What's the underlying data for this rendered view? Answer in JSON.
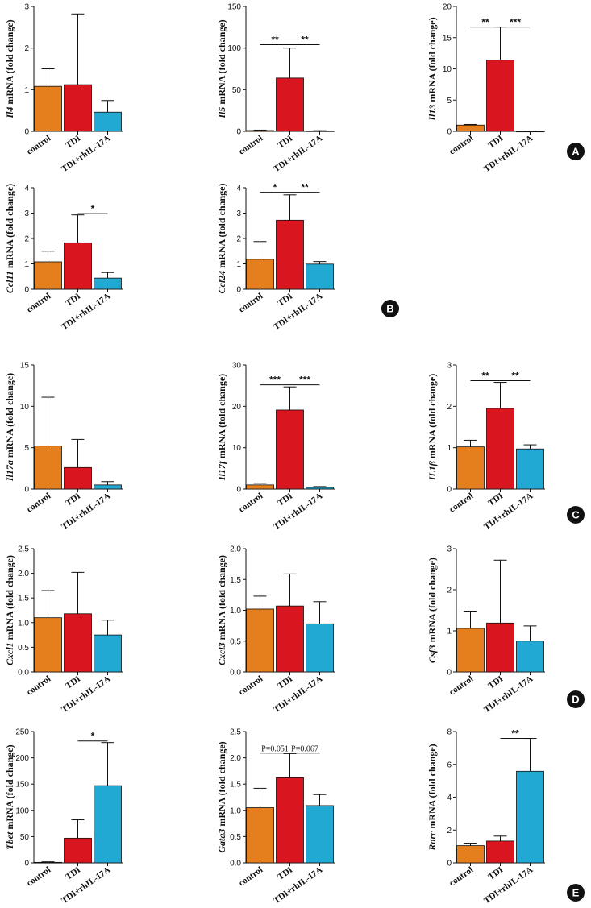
{
  "colors": {
    "control": "#e57e1c",
    "TDI": "#d9161f",
    "TDI+rhIL-17A": "#22a9d3",
    "axis": "#111111"
  },
  "chart_data": [
    {
      "type": "bar",
      "panel": "A",
      "gene": "Il4",
      "ylabel_suffix": " mRNA (fold change)",
      "categories": [
        "control",
        "TDI",
        "TDI+rhIL-17A"
      ],
      "values": [
        1.08,
        1.12,
        0.46
      ],
      "errors": [
        0.42,
        1.7,
        0.28
      ],
      "ylim": [
        0,
        3
      ],
      "yticks": [
        "0",
        "1",
        "2",
        "3"
      ],
      "significance": []
    },
    {
      "type": "bar",
      "panel": "A",
      "gene": "Il5",
      "ylabel_suffix": " mRNA (fold change)",
      "categories": [
        "control",
        "TDI",
        "TDI+rhIL-17A"
      ],
      "values": [
        1,
        64,
        0.5
      ],
      "errors": [
        0.5,
        36,
        0.3
      ],
      "ylim": [
        0,
        150
      ],
      "yticks": [
        "0",
        "50",
        "100",
        "150"
      ],
      "significance": [
        {
          "from": 0,
          "to": 1,
          "label": "**",
          "level": 104
        },
        {
          "from": 1,
          "to": 2,
          "label": "**",
          "level": 104
        }
      ]
    },
    {
      "type": "bar",
      "panel": "A",
      "gene": "Il13",
      "ylabel_suffix": " mRNA (fold change)",
      "categories": [
        "control",
        "TDI",
        "TDI+rhIL-17A"
      ],
      "values": [
        1.0,
        11.4,
        0.02
      ],
      "errors": [
        0.1,
        5.3,
        0.01
      ],
      "ylim": [
        0,
        20
      ],
      "yticks": [
        "0",
        "5",
        "10",
        "15",
        "20"
      ],
      "significance": [
        {
          "from": 0,
          "to": 1,
          "label": "**",
          "level": 16.7
        },
        {
          "from": 1,
          "to": 2,
          "label": "***",
          "level": 16.7
        }
      ]
    },
    {
      "type": "bar",
      "panel": "B",
      "gene": "Ccl11",
      "ylabel_suffix": " mRNA (fold change)",
      "categories": [
        "control",
        "TDI",
        "TDI+rhIL-17A"
      ],
      "values": [
        1.08,
        1.83,
        0.44
      ],
      "errors": [
        0.42,
        1.1,
        0.22
      ],
      "ylim": [
        0,
        4
      ],
      "yticks": [
        "0",
        "1",
        "2",
        "3",
        "4"
      ],
      "significance": [
        {
          "from": 1,
          "to": 2,
          "label": "*",
          "level": 2.98
        }
      ]
    },
    {
      "type": "bar",
      "panel": "B",
      "gene": "Ccl24",
      "ylabel_suffix": " mRNA (fold change)",
      "categories": [
        "control",
        "TDI",
        "TDI+rhIL-17A"
      ],
      "values": [
        1.18,
        2.72,
        0.99
      ],
      "errors": [
        0.7,
        1.0,
        0.1
      ],
      "ylim": [
        0,
        4
      ],
      "yticks": [
        "0",
        "1",
        "2",
        "3",
        "4"
      ],
      "significance": [
        {
          "from": 0,
          "to": 1,
          "label": "*",
          "level": 3.82
        },
        {
          "from": 1,
          "to": 2,
          "label": "**",
          "level": 3.82
        }
      ]
    },
    {
      "type": "bar",
      "panel": "C",
      "gene": "Il17a",
      "ylabel_suffix": " mRNA (fold change)",
      "categories": [
        "control",
        "TDI",
        "TDI+rhIL-17A"
      ],
      "values": [
        5.2,
        2.6,
        0.5
      ],
      "errors": [
        5.9,
        3.4,
        0.4
      ],
      "ylim": [
        0,
        15
      ],
      "yticks": [
        "0",
        "5",
        "10",
        "15"
      ],
      "significance": []
    },
    {
      "type": "bar",
      "panel": "C",
      "gene": "Il17f",
      "ylabel_suffix": " mRNA (fold change)",
      "categories": [
        "control",
        "TDI",
        "TDI+rhIL-17A"
      ],
      "values": [
        1.0,
        19.1,
        0.4
      ],
      "errors": [
        0.4,
        5.6,
        0.2
      ],
      "ylim": [
        0,
        30
      ],
      "yticks": [
        "0",
        "10",
        "20",
        "30"
      ],
      "significance": [
        {
          "from": 0,
          "to": 1,
          "label": "***",
          "level": 25.2
        },
        {
          "from": 1,
          "to": 2,
          "label": "***",
          "level": 25.2
        }
      ]
    },
    {
      "type": "bar",
      "panel": "C",
      "gene": "IL1β",
      "ylabel_suffix": " mRNA (fold change)",
      "categories": [
        "control",
        "TDI",
        "TDI+rhIL-17A"
      ],
      "values": [
        1.02,
        1.95,
        0.97
      ],
      "errors": [
        0.16,
        0.63,
        0.1
      ],
      "ylim": [
        0,
        3
      ],
      "yticks": [
        "0",
        "1",
        "2",
        "3"
      ],
      "significance": [
        {
          "from": 0,
          "to": 1,
          "label": "**",
          "level": 2.62
        },
        {
          "from": 1,
          "to": 2,
          "label": "**",
          "level": 2.62
        }
      ]
    },
    {
      "type": "bar",
      "panel": "D",
      "gene": "Cxcl1",
      "ylabel_suffix": " mRNA (fold change)",
      "categories": [
        "control",
        "TDI",
        "TDI+rhIL-17A"
      ],
      "values": [
        1.1,
        1.18,
        0.75
      ],
      "errors": [
        0.55,
        0.84,
        0.3
      ],
      "ylim": [
        0,
        2.5
      ],
      "yticks": [
        "0.0",
        "0.5",
        "1.0",
        "1.5",
        "2.0",
        "2.5"
      ],
      "significance": []
    },
    {
      "type": "bar",
      "panel": "D",
      "gene": "Cxcl3",
      "ylabel_suffix": " mRNA (fold change)",
      "categories": [
        "control",
        "TDI",
        "TDI+rhIL-17A"
      ],
      "values": [
        1.02,
        1.07,
        0.78
      ],
      "errors": [
        0.21,
        0.52,
        0.36
      ],
      "ylim": [
        0,
        2.0
      ],
      "yticks": [
        "0.0",
        "0.5",
        "1.0",
        "1.5",
        "2.0"
      ],
      "significance": []
    },
    {
      "type": "bar",
      "panel": "D",
      "gene": "Csf3",
      "ylabel_suffix": " mRNA (fold change)",
      "categories": [
        "control",
        "TDI",
        "TDI+rhIL-17A"
      ],
      "values": [
        1.06,
        1.19,
        0.75
      ],
      "errors": [
        0.42,
        1.53,
        0.37
      ],
      "ylim": [
        0,
        3
      ],
      "yticks": [
        "0",
        "1",
        "2",
        "3"
      ],
      "significance": []
    },
    {
      "type": "bar",
      "panel": "E",
      "gene": "Tbet",
      "ylabel_suffix": " mRNA (fold change)",
      "categories": [
        "control",
        "TDI",
        "TDI+rhIL-17A"
      ],
      "values": [
        1,
        47,
        147
      ],
      "errors": [
        1,
        35,
        82
      ],
      "ylim": [
        0,
        250
      ],
      "yticks": [
        "0",
        "50",
        "100",
        "150",
        "200",
        "250"
      ],
      "significance": [
        {
          "from": 1,
          "to": 2,
          "label": "*",
          "level": 232
        }
      ]
    },
    {
      "type": "bar",
      "panel": "E",
      "gene": "Gata3",
      "ylabel_suffix": " mRNA (fold change)",
      "categories": [
        "control",
        "TDI",
        "TDI+rhIL-17A"
      ],
      "values": [
        1.05,
        1.62,
        1.09
      ],
      "errors": [
        0.37,
        0.46,
        0.21
      ],
      "ylim": [
        0,
        2.5
      ],
      "yticks": [
        "0.0",
        "0.5",
        "1.0",
        "1.5",
        "2.0",
        "2.5"
      ],
      "significance": [
        {
          "from": 0,
          "to": 1,
          "label": "P=0.051",
          "level": 2.09
        },
        {
          "from": 1,
          "to": 2,
          "label": "P=0.067",
          "level": 2.09
        }
      ]
    },
    {
      "type": "bar",
      "panel": "E",
      "gene": "Rorc",
      "ylabel_suffix": " mRNA (fold change)",
      "categories": [
        "control",
        "TDI",
        "TDI+rhIL-17A"
      ],
      "values": [
        1.05,
        1.33,
        5.58
      ],
      "errors": [
        0.15,
        0.3,
        2.0
      ],
      "ylim": [
        0,
        8
      ],
      "yticks": [
        "0",
        "2",
        "4",
        "6",
        "8"
      ],
      "significance": [
        {
          "from": 1,
          "to": 2,
          "label": "**",
          "level": 7.58
        }
      ]
    }
  ],
  "panel_badges": [
    "A",
    "B",
    "C",
    "D",
    "E"
  ]
}
